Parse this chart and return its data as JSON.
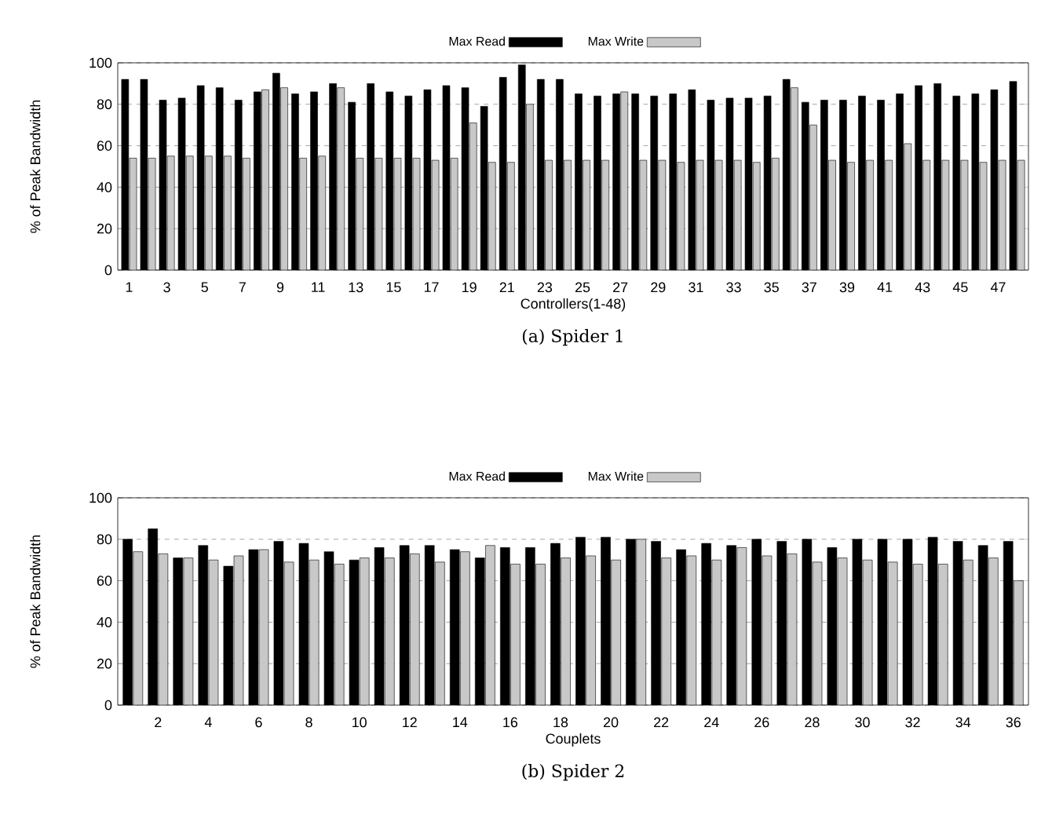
{
  "chart_data": [
    {
      "type": "bar",
      "xlabel": "Controllers(1-48)",
      "ylabel": "% of Peak Bandwidth",
      "annotations": [
        "(a) Spider 1"
      ],
      "categories": [
        "1",
        null,
        "3",
        null,
        "5",
        null,
        "7",
        null,
        "9",
        null,
        "11",
        null,
        "13",
        null,
        "15",
        null,
        "17",
        null,
        "19",
        null,
        "21",
        null,
        "23",
        null,
        "25",
        null,
        "27",
        null,
        "29",
        null,
        "31",
        null,
        "33",
        null,
        "35",
        null,
        "37",
        null,
        "39",
        null,
        "41",
        null,
        "43",
        null,
        "45",
        null,
        "47",
        null
      ],
      "series": [
        {
          "name": "Max Read",
          "color": "#000000",
          "values": [
            92,
            92,
            82,
            83,
            89,
            88,
            82,
            86,
            95,
            85,
            86,
            90,
            81,
            90,
            86,
            84,
            87,
            89,
            88,
            79,
            93,
            99,
            92,
            92,
            85,
            84,
            85,
            85,
            84,
            85,
            87,
            82,
            83,
            83,
            84,
            92,
            81,
            82,
            82,
            84,
            82,
            85,
            89,
            90,
            84,
            85,
            87,
            91
          ]
        },
        {
          "name": "Max Write",
          "color": "#c8c8c8",
          "values": [
            54,
            54,
            55,
            55,
            55,
            55,
            54,
            87,
            88,
            54,
            55,
            88,
            54,
            54,
            54,
            54,
            53,
            54,
            71,
            52,
            52,
            80,
            53,
            53,
            53,
            53,
            86,
            53,
            53,
            52,
            53,
            53,
            53,
            52,
            54,
            88,
            70,
            53,
            52,
            53,
            53,
            61,
            53,
            53,
            53,
            52,
            53,
            53
          ]
        }
      ],
      "ylim": [
        0,
        100
      ],
      "yticks": [
        0,
        20,
        40,
        60,
        80,
        100
      ],
      "grid": "y",
      "legend": "top"
    },
    {
      "type": "bar",
      "xlabel": "Couplets",
      "ylabel": "% of Peak Bandwidth",
      "annotations": [
        "(b) Spider 2"
      ],
      "categories": [
        null,
        "2",
        null,
        "4",
        null,
        "6",
        null,
        "8",
        null,
        "10",
        null,
        "12",
        null,
        "14",
        null,
        "16",
        null,
        "18",
        null,
        "20",
        null,
        "22",
        null,
        "24",
        null,
        "26",
        null,
        "28",
        null,
        "30",
        null,
        "32",
        null,
        "34",
        null,
        "36"
      ],
      "series": [
        {
          "name": "Max Read",
          "color": "#000000",
          "values": [
            80,
            85,
            71,
            77,
            67,
            75,
            79,
            78,
            74,
            70,
            76,
            77,
            77,
            75,
            71,
            76,
            76,
            78,
            81,
            81,
            80,
            79,
            75,
            78,
            77,
            80,
            79,
            80,
            76,
            80,
            80,
            80,
            81,
            79,
            77,
            79
          ]
        },
        {
          "name": "Max Write",
          "color": "#c8c8c8",
          "values": [
            74,
            73,
            71,
            70,
            72,
            75,
            69,
            70,
            68,
            71,
            71,
            73,
            69,
            74,
            77,
            68,
            68,
            71,
            72,
            70,
            80,
            71,
            72,
            70,
            76,
            72,
            73,
            69,
            71,
            70,
            69,
            68,
            68,
            70,
            71,
            60
          ]
        }
      ],
      "ylim": [
        0,
        100
      ],
      "yticks": [
        0,
        20,
        40,
        60,
        80,
        100
      ],
      "grid": "y",
      "legend": "top"
    }
  ]
}
